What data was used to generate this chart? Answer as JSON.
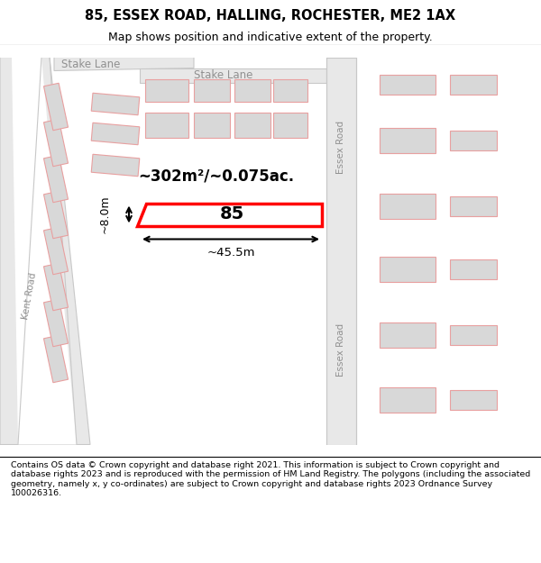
{
  "title": "85, ESSEX ROAD, HALLING, ROCHESTER, ME2 1AX",
  "subtitle": "Map shows position and indicative extent of the property.",
  "footer": "Contains OS data © Crown copyright and database right 2021. This information is subject to Crown copyright and database rights 2023 and is reproduced with the permission of HM Land Registry. The polygons (including the associated geometry, namely x, y co-ordinates) are subject to Crown copyright and database rights 2023 Ordnance Survey 100026316.",
  "area_text": "~302m²/~0.075ac.",
  "number_text": "85",
  "width_text": "~45.5m",
  "height_text": "~8.0m",
  "road_label_stake1": "Stake Lane",
  "road_label_stake2": "Stake Lane",
  "road_label_essex1": "Essex Road",
  "road_label_essex2": "Essex Road",
  "road_label_kent": "Kent Road",
  "bfill": "#d8d8d8",
  "bedge": "#e8a0a0",
  "road_fill": "#e8e8e8",
  "road_edge": "#c8c8c8",
  "green_fill": "#d4e8d4",
  "highlight_fill": "#ffffff",
  "highlight_edge": "#ff0000"
}
